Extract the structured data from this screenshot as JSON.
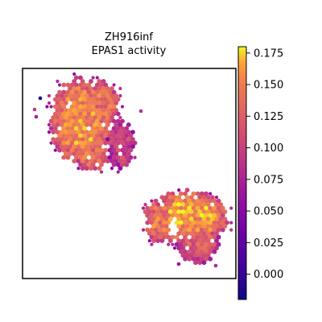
{
  "chart_data": {
    "type": "scatter",
    "title": "ZH916inf",
    "subtitle": "EPAS1 activity",
    "xlabel": "",
    "ylabel": "",
    "grid": false,
    "colormap": "plasma",
    "colorbar": {
      "vmin": -0.02,
      "vmax": 0.18,
      "ticks": [
        0.0,
        0.025,
        0.05,
        0.075,
        0.1,
        0.125,
        0.15,
        0.175
      ],
      "tick_labels": [
        "0.000",
        "0.025",
        "0.050",
        "0.075",
        "0.100",
        "0.125",
        "0.150",
        "0.175"
      ]
    },
    "series": [
      {
        "values": "spatial spots colored by EPAS1 activity"
      }
    ]
  }
}
